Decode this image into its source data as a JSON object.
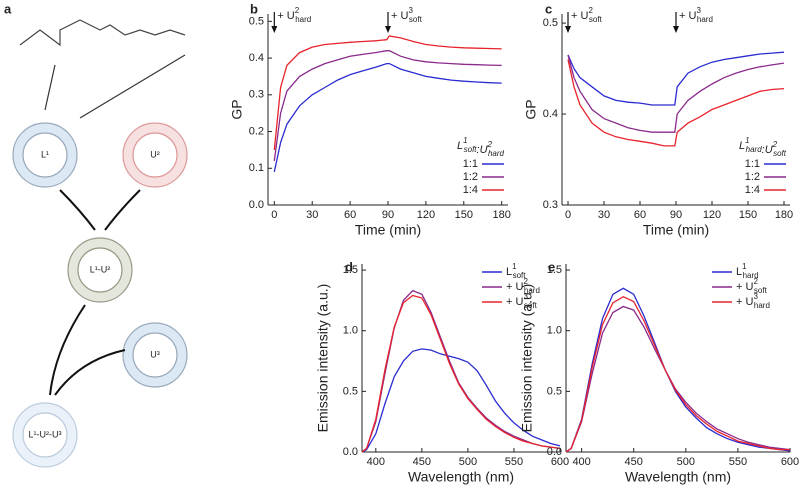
{
  "diagram": {
    "panel_label": "a",
    "nodes": [
      {
        "label": "L¹"
      },
      {
        "label": "U²"
      },
      {
        "label": "L¹-U²"
      },
      {
        "label": "U³"
      },
      {
        "label": "L¹-U²-U³"
      }
    ]
  },
  "chart_data": [
    {
      "type": "line",
      "panel_label": "b",
      "ylabel": "GP",
      "xlabel": "Time (min)",
      "legend": "lower right",
      "legend_title": [
        {
          "text": "L",
          "sup": "1",
          "sub": "soft"
        },
        {
          "text": ":U",
          "sup": "2",
          "sub": "hard"
        }
      ],
      "annotations": [
        {
          "x": 0,
          "text": "+ U",
          "sup": "2",
          "sub": "hard"
        },
        {
          "x": 90,
          "text": "+ U",
          "sup": "3",
          "sub": "soft"
        }
      ],
      "xlim": [
        -5,
        185
      ],
      "ylim": [
        0,
        0.52
      ],
      "xticks": [
        0,
        30,
        60,
        90,
        120,
        150,
        180
      ],
      "yticks": [
        {
          "value": 0,
          "label": "0.0"
        },
        0.1,
        0.2,
        0.3,
        0.4,
        0.5
      ],
      "x": [
        0,
        5,
        10,
        20,
        30,
        40,
        50,
        60,
        70,
        80,
        89,
        91,
        100,
        110,
        120,
        130,
        140,
        150,
        160,
        170,
        180
      ],
      "series": [
        {
          "name": "1:1",
          "color": "#2b2bd1",
          "values": [
            0.09,
            0.17,
            0.22,
            0.27,
            0.3,
            0.32,
            0.34,
            0.355,
            0.365,
            0.375,
            0.385,
            0.385,
            0.37,
            0.36,
            0.35,
            0.345,
            0.34,
            0.337,
            0.335,
            0.333,
            0.332
          ]
        },
        {
          "name": "1:2",
          "color": "#8a2a8c",
          "values": [
            0.12,
            0.25,
            0.31,
            0.35,
            0.37,
            0.385,
            0.395,
            0.405,
            0.41,
            0.415,
            0.42,
            0.42,
            0.405,
            0.395,
            0.39,
            0.387,
            0.385,
            0.383,
            0.382,
            0.381,
            0.38
          ]
        },
        {
          "name": "1:4",
          "color": "#e8232c",
          "values": [
            0.15,
            0.32,
            0.38,
            0.415,
            0.43,
            0.437,
            0.44,
            0.443,
            0.445,
            0.447,
            0.45,
            0.46,
            0.455,
            0.445,
            0.437,
            0.433,
            0.43,
            0.428,
            0.427,
            0.426,
            0.425
          ]
        }
      ]
    },
    {
      "type": "line",
      "panel_label": "c",
      "ylabel": "GP",
      "xlabel": "Time (min)",
      "legend": "lower right",
      "legend_title": [
        {
          "text": "L",
          "sup": "1",
          "sub": "hard"
        },
        {
          "text": ":U",
          "sup": "2",
          "sub": "soft"
        }
      ],
      "annotations": [
        {
          "x": 0,
          "text": "+ U",
          "sup": "2",
          "sub": "soft"
        },
        {
          "x": 90,
          "text": "+ U",
          "sup": "3",
          "sub": "hard"
        }
      ],
      "xlim": [
        -5,
        185
      ],
      "ylim": [
        0.3,
        0.51
      ],
      "xticks": [
        0,
        30,
        60,
        90,
        120,
        150,
        180
      ],
      "yticks": [
        0.3,
        0.4,
        0.5
      ],
      "x": [
        0,
        5,
        10,
        20,
        30,
        40,
        50,
        60,
        70,
        80,
        89,
        91,
        100,
        110,
        120,
        130,
        140,
        150,
        160,
        170,
        180
      ],
      "series": [
        {
          "name": "1:1",
          "color": "#2b2bd1",
          "values": [
            0.465,
            0.45,
            0.44,
            0.43,
            0.42,
            0.415,
            0.413,
            0.412,
            0.41,
            0.41,
            0.41,
            0.43,
            0.445,
            0.452,
            0.457,
            0.46,
            0.462,
            0.464,
            0.466,
            0.467,
            0.468
          ]
        },
        {
          "name": "1:2",
          "color": "#8a2a8c",
          "values": [
            0.465,
            0.44,
            0.425,
            0.405,
            0.395,
            0.39,
            0.385,
            0.382,
            0.38,
            0.38,
            0.38,
            0.4,
            0.415,
            0.425,
            0.433,
            0.44,
            0.445,
            0.449,
            0.452,
            0.454,
            0.456
          ]
        },
        {
          "name": "1:4",
          "color": "#e8232c",
          "values": [
            0.46,
            0.43,
            0.41,
            0.39,
            0.38,
            0.375,
            0.372,
            0.37,
            0.368,
            0.365,
            0.365,
            0.38,
            0.39,
            0.397,
            0.405,
            0.41,
            0.415,
            0.42,
            0.425,
            0.427,
            0.428
          ]
        }
      ]
    },
    {
      "type": "line",
      "panel_label": "d",
      "ylabel": "Emission intensity (a.u.)",
      "xlabel": "Wavelength (nm)",
      "legend": "upper right",
      "xlim": [
        385,
        600
      ],
      "ylim": [
        0,
        1.55
      ],
      "xticks": [
        400,
        450,
        500,
        550,
        600
      ],
      "yticks": [
        {
          "value": 0,
          "label": "0.0"
        },
        0.5,
        {
          "value": 1,
          "label": "1.0"
        },
        1.5
      ],
      "x": [
        385,
        390,
        400,
        410,
        420,
        430,
        440,
        450,
        460,
        470,
        480,
        490,
        500,
        510,
        520,
        530,
        540,
        550,
        560,
        570,
        580,
        590,
        600
      ],
      "series": [
        {
          "name": [
            {
              "text": "L",
              "sup": "1",
              "sub": "soft"
            }
          ],
          "color": "#2b2bd1",
          "values": [
            0,
            0.02,
            0.15,
            0.4,
            0.62,
            0.75,
            0.83,
            0.85,
            0.84,
            0.81,
            0.79,
            0.77,
            0.74,
            0.67,
            0.55,
            0.42,
            0.32,
            0.24,
            0.18,
            0.13,
            0.1,
            0.07,
            0.05
          ]
        },
        {
          "name": [
            {
              "text": "+ U",
              "sup": "2",
              "sub": "hard"
            }
          ],
          "color": "#8a2a8c",
          "values": [
            0,
            0.03,
            0.25,
            0.65,
            1.02,
            1.25,
            1.33,
            1.3,
            1.15,
            0.95,
            0.75,
            0.57,
            0.45,
            0.36,
            0.28,
            0.22,
            0.17,
            0.13,
            0.1,
            0.07,
            0.05,
            0.04,
            0.03
          ]
        },
        {
          "name": [
            {
              "text": "+ U",
              "sup": "3",
              "sub": "soft"
            }
          ],
          "color": "#e8232c",
          "values": [
            0,
            0.03,
            0.27,
            0.68,
            1.03,
            1.23,
            1.29,
            1.27,
            1.13,
            0.93,
            0.73,
            0.56,
            0.44,
            0.35,
            0.27,
            0.21,
            0.16,
            0.12,
            0.09,
            0.07,
            0.05,
            0.04,
            0.03
          ]
        }
      ]
    },
    {
      "type": "line",
      "panel_label": "e",
      "ylabel": "Emission intensity (a.u.)",
      "xlabel": "Wavelength (nm)",
      "legend": "upper right",
      "xlim": [
        385,
        600
      ],
      "ylim": [
        0,
        1.55
      ],
      "xticks": [
        400,
        450,
        500,
        550,
        600
      ],
      "yticks": [
        {
          "value": 0,
          "label": "0.0"
        },
        0.5,
        {
          "value": 1,
          "label": "1.0"
        },
        1.5
      ],
      "x": [
        385,
        390,
        400,
        410,
        420,
        430,
        440,
        450,
        460,
        470,
        480,
        490,
        500,
        510,
        520,
        530,
        540,
        550,
        560,
        570,
        580,
        590,
        600
      ],
      "series": [
        {
          "name": [
            {
              "text": "L",
              "sup": "1",
              "sub": "hard"
            }
          ],
          "color": "#2b2bd1",
          "values": [
            0,
            0.03,
            0.27,
            0.72,
            1.1,
            1.3,
            1.35,
            1.3,
            1.12,
            0.9,
            0.68,
            0.5,
            0.37,
            0.28,
            0.2,
            0.15,
            0.11,
            0.08,
            0.06,
            0.04,
            0.03,
            0.02,
            0.01
          ]
        },
        {
          "name": [
            {
              "text": "+ U",
              "sup": "2",
              "sub": "soft"
            }
          ],
          "color": "#8a2a8c",
          "values": [
            0,
            0.03,
            0.25,
            0.64,
            0.98,
            1.15,
            1.2,
            1.17,
            1.03,
            0.85,
            0.68,
            0.52,
            0.41,
            0.32,
            0.25,
            0.19,
            0.15,
            0.11,
            0.08,
            0.06,
            0.04,
            0.03,
            0.02
          ]
        },
        {
          "name": [
            {
              "text": "+ U",
              "sup": "3",
              "sub": "hard"
            }
          ],
          "color": "#e8232c",
          "values": [
            0,
            0.03,
            0.26,
            0.69,
            1.05,
            1.23,
            1.28,
            1.24,
            1.08,
            0.88,
            0.68,
            0.51,
            0.39,
            0.3,
            0.23,
            0.17,
            0.13,
            0.09,
            0.07,
            0.05,
            0.03,
            0.02,
            0.02
          ]
        }
      ]
    }
  ]
}
